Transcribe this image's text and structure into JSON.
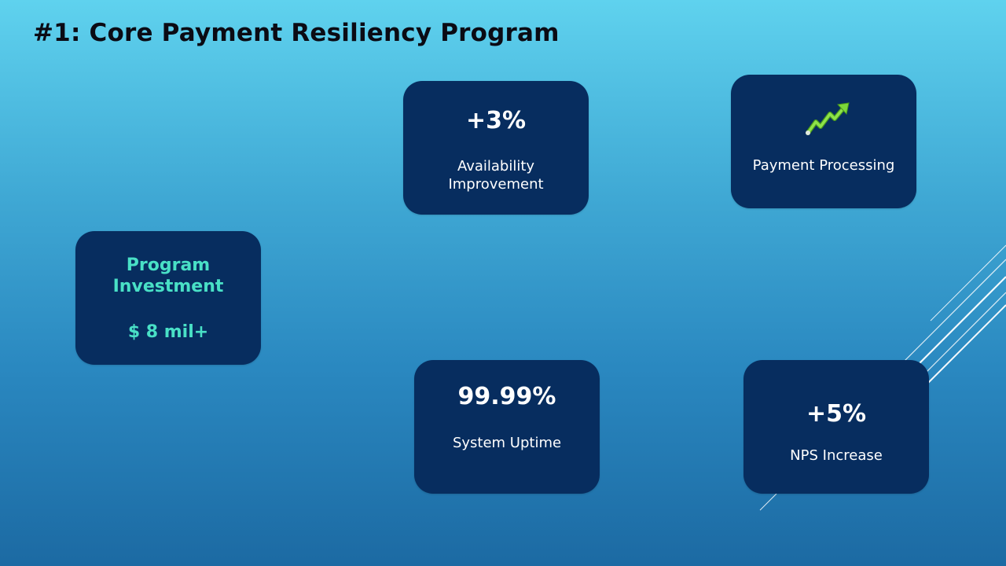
{
  "slide": {
    "title": "#1: Core Payment Resiliency Program"
  },
  "cards": {
    "availability": {
      "metric": "+3%",
      "caption": "Availability Improvement"
    },
    "payment_processing": {
      "icon": "trend-up-arrow-icon",
      "caption": "Payment Processing"
    },
    "investment": {
      "label": "Program\nInvestment",
      "amount": "$ 8 mil+"
    },
    "uptime": {
      "metric": "99.99%",
      "caption": "System Uptime"
    },
    "nps": {
      "metric": "+5%",
      "caption": "NPS Increase"
    }
  },
  "colors": {
    "card_background": "#072d5f",
    "investment_text": "#49e0c6",
    "icon_green": "#7cd83a"
  }
}
